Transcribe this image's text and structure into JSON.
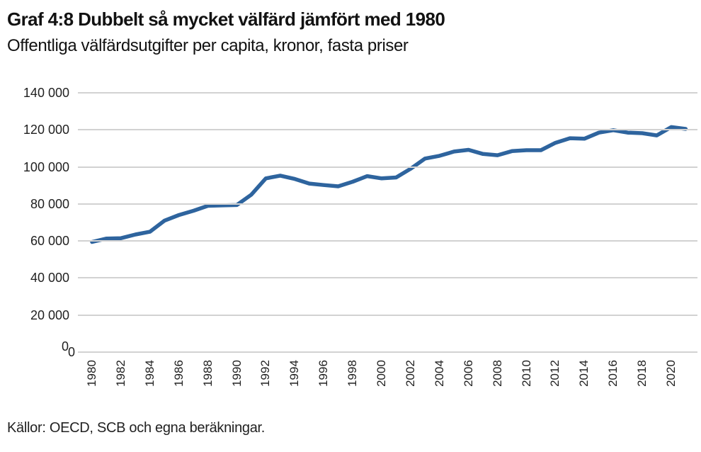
{
  "header": {
    "title": "Graf 4:8 Dubbelt så mycket välfärd jämfört med 1980",
    "subtitle": "Offentliga välfärdsutgifter per capita, kronor, fasta priser"
  },
  "footer": {
    "source": "Källor: OECD, SCB och egna beräkningar."
  },
  "chart_data": {
    "type": "line",
    "title": "Graf 4:8 Dubbelt så mycket välfärd jämfört med 1980",
    "subtitle": "Offentliga välfärdsutgifter per capita, kronor, fasta priser",
    "series_name": "Offentliga välfärdsutgifter per capita (kronor, fasta priser)",
    "x": [
      1980,
      1981,
      1982,
      1983,
      1984,
      1985,
      1986,
      1987,
      1988,
      1989,
      1990,
      1991,
      1992,
      1993,
      1994,
      1995,
      1996,
      1997,
      1998,
      1999,
      2000,
      2001,
      2002,
      2003,
      2004,
      2005,
      2006,
      2007,
      2008,
      2009,
      2010,
      2011,
      2012,
      2013,
      2014,
      2015,
      2016,
      2017,
      2018,
      2019,
      2020,
      2021
    ],
    "values": [
      59500,
      61300,
      61500,
      63500,
      65000,
      71000,
      74000,
      76300,
      79000,
      79200,
      79400,
      85000,
      93800,
      95300,
      93500,
      91000,
      90200,
      89500,
      92000,
      95000,
      93800,
      94300,
      99000,
      104500,
      106000,
      108300,
      109200,
      107000,
      106300,
      108500,
      109000,
      109000,
      113000,
      115500,
      115200,
      118500,
      119800,
      118500,
      118200,
      117000,
      121500,
      120500
    ],
    "ylim": [
      0,
      140000
    ],
    "y_ticks": [
      "140 000",
      "120 000",
      "100 000",
      "80 000",
      "60 000",
      "40 000",
      "20 000",
      "0"
    ],
    "y_tick_values": [
      140000,
      120000,
      100000,
      80000,
      60000,
      40000,
      20000,
      0
    ],
    "duplicate_zero_label": "0",
    "x_tick_labels": [
      "1980",
      "1982",
      "1984",
      "1986",
      "1988",
      "1990",
      "1992",
      "1994",
      "1996",
      "1998",
      "2000",
      "2002",
      "2004",
      "2006",
      "2008",
      "2010",
      "2012",
      "2014",
      "2016",
      "2018",
      "2020"
    ],
    "grid": "horizontal",
    "legend": "none",
    "line_color": "#2e649e",
    "gridline_color": "#d2d2d2"
  }
}
